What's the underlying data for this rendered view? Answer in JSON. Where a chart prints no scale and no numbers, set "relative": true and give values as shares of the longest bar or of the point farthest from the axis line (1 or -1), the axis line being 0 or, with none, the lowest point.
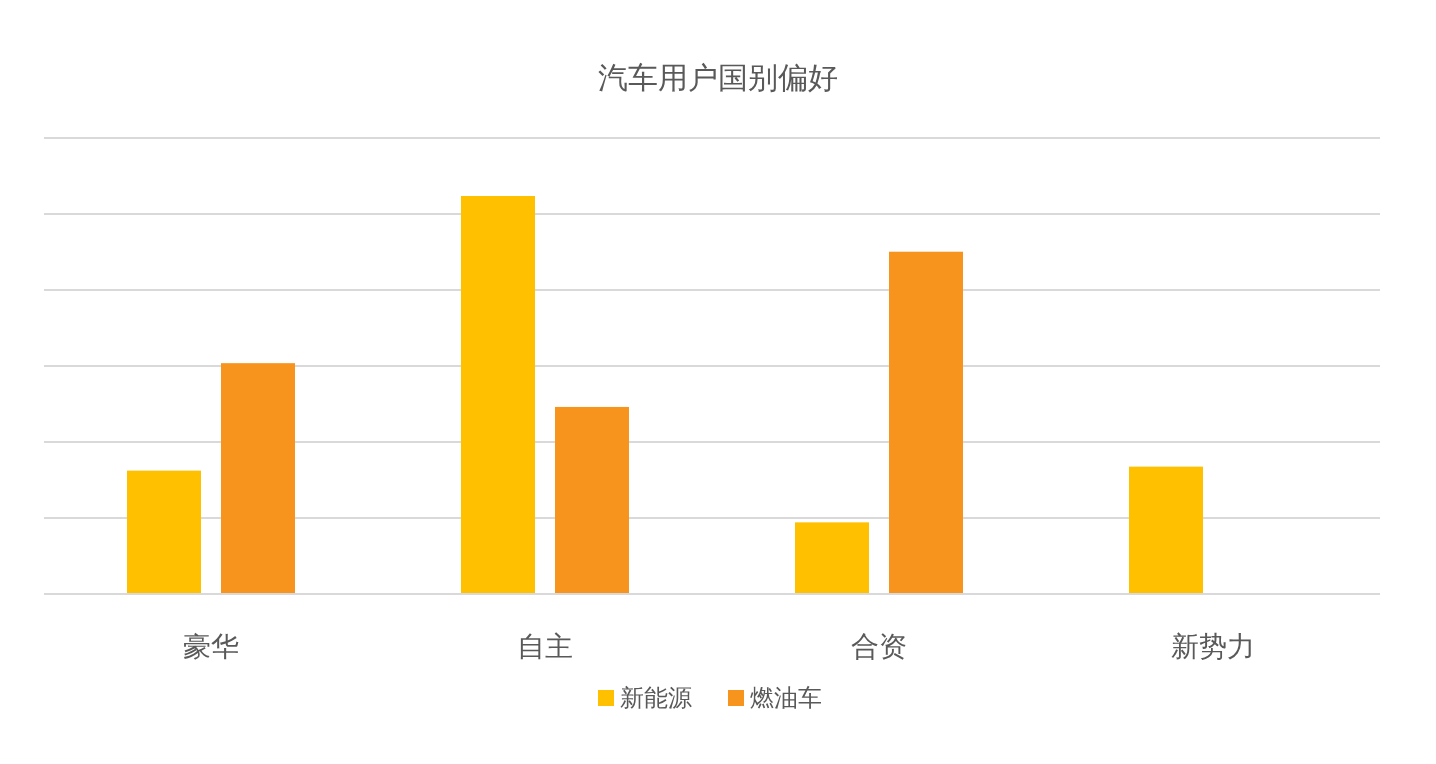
{
  "chart_data": {
    "type": "bar",
    "title": "汽车用户国别偏好",
    "relative": true,
    "grid": true,
    "legend": "bottom",
    "categories": [
      "豪华",
      "自主",
      "合资",
      "新势力"
    ],
    "series": [
      {
        "name": "新能源",
        "color": "#ffc000",
        "values": [
          0.31,
          1,
          0.18,
          0.32
        ]
      },
      {
        "name": "燃油车",
        "color": "#f7941d",
        "values": [
          0.58,
          0.47,
          0.86,
          null
        ]
      }
    ]
  }
}
